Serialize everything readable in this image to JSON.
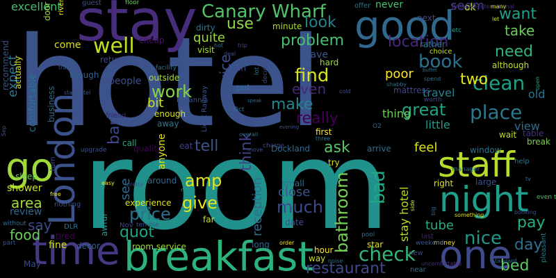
{
  "title": "",
  "background": "#000000",
  "words": [
    {
      "text": "hotel",
      "color": "#3b528b"
    },
    {
      "text": "room",
      "color": "#21918c"
    },
    {
      "text": "stay",
      "color": "#472d7b"
    },
    {
      "text": "good",
      "color": "#31688e"
    },
    {
      "text": "breakfast",
      "color": "#2db27d"
    },
    {
      "text": "London",
      "color": "#3b528b"
    },
    {
      "text": "night",
      "color": "#1f9e89"
    },
    {
      "text": "staff",
      "color": "#b5de2b"
    },
    {
      "text": "time",
      "color": "#443983"
    },
    {
      "text": "one",
      "color": "#3e4a89"
    },
    {
      "text": "go",
      "color": "#a0da39"
    },
    {
      "text": "Canary Wharf",
      "color": "#52c569"
    },
    {
      "text": "check",
      "color": "#35b779"
    },
    {
      "text": "well",
      "color": "#c2df23"
    },
    {
      "text": "book",
      "color": "#2c728e"
    },
    {
      "text": "clean",
      "color": "#1fa088"
    },
    {
      "text": "place",
      "color": "#2a788e"
    },
    {
      "text": "find",
      "color": "#d8e219"
    },
    {
      "text": "great",
      "color": "#20a486"
    },
    {
      "text": "work",
      "color": "#86d549"
    },
    {
      "text": "bad",
      "color": "#22a884"
    },
    {
      "text": "amp",
      "color": "#e5e419"
    },
    {
      "text": "give",
      "color": "#e5e419"
    },
    {
      "text": "much",
      "color": "#3e4a89"
    },
    {
      "text": "nice",
      "color": "#1f978b"
    },
    {
      "text": "price",
      "color": "#2d708e"
    },
    {
      "text": "bathroom",
      "color": "#75d054"
    },
    {
      "text": "restaurant",
      "color": "#3e4989"
    },
    {
      "text": "take",
      "color": "#6ccd5a"
    },
    {
      "text": "want",
      "color": "#1fa187"
    },
    {
      "text": "need",
      "color": "#31b57b"
    },
    {
      "text": "look",
      "color": "#26828e"
    },
    {
      "text": "use",
      "color": "#90d743"
    },
    {
      "text": "problem",
      "color": "#4ac16d"
    },
    {
      "text": "location",
      "color": "#482878"
    },
    {
      "text": "really",
      "color": "#440154"
    },
    {
      "text": "make",
      "color": "#25858e"
    },
    {
      "text": "think",
      "color": "#3f4788"
    },
    {
      "text": "tell",
      "color": "#3a548c"
    },
    {
      "text": "ask",
      "color": "#56c667"
    },
    {
      "text": "pay",
      "color": "#28ae80"
    },
    {
      "text": "day",
      "color": "#2d708e"
    },
    {
      "text": "bed",
      "color": "#5ec962"
    },
    {
      "text": "service",
      "color": "#3b528b"
    },
    {
      "text": "reception",
      "color": "#2f6c8e"
    },
    {
      "text": "say",
      "color": "#3e4a89"
    },
    {
      "text": "area",
      "color": "#a2da37"
    },
    {
      "text": "food",
      "color": "#6ccd5a"
    },
    {
      "text": "quot",
      "color": "#20a386"
    },
    {
      "text": "bar",
      "color": "#3f4788"
    },
    {
      "text": "two",
      "color": "#e7e419"
    },
    {
      "text": "even",
      "color": "#482878"
    },
    {
      "text": "quite",
      "color": "#9bd93c"
    },
    {
      "text": "stay hotel",
      "color": "#b8de29"
    },
    {
      "text": "tube",
      "color": "#26ad81"
    },
    {
      "text": "poor",
      "color": "#fde725"
    },
    {
      "text": "close",
      "color": "#3a548c"
    },
    {
      "text": "expect",
      "color": "#2c738e"
    },
    {
      "text": "seem",
      "color": "#433d84"
    },
    {
      "text": "see",
      "color": "#2e6e8e"
    },
    {
      "text": "feel",
      "color": "#dde318"
    },
    {
      "text": "excellent",
      "color": "#44bf70"
    },
    {
      "text": "bit",
      "color": "#c8e020"
    },
    {
      "text": "room service",
      "color": "#a5db36"
    },
    {
      "text": "shower",
      "color": "#d2e21b"
    },
    {
      "text": "view",
      "color": "#2e6d8e"
    },
    {
      "text": "thing",
      "color": "#6ece58"
    },
    {
      "text": "travel",
      "color": "#26828e"
    },
    {
      "text": "little",
      "color": "#1f9a8a"
    },
    {
      "text": "old",
      "color": "#2a778e"
    },
    {
      "text": "fine",
      "color": "#d0e11c"
    },
    {
      "text": "review",
      "color": "#31668e"
    },
    {
      "text": "never",
      "color": "#48c16e"
    },
    {
      "text": "ok",
      "color": "#b0dd2f"
    },
    {
      "text": "people",
      "color": "#3d4e8a"
    },
    {
      "text": "come",
      "color": "#dfe318"
    },
    {
      "text": "leave",
      "color": "#38598c"
    },
    {
      "text": "mattress",
      "color": "#3f4889"
    },
    {
      "text": "first",
      "color": "#fde725"
    },
    {
      "text": "sleep",
      "color": "#6ccd5a"
    },
    {
      "text": "Dockland",
      "color": "#31688e"
    },
    {
      "text": "arrive",
      "color": "#2f6c8e"
    },
    {
      "text": "window",
      "color": "#2c738e"
    },
    {
      "text": "wait",
      "color": "#c2df23"
    },
    {
      "text": "right",
      "color": "#dfe318"
    },
    {
      "text": "large",
      "color": "#3b528b"
    },
    {
      "text": "table",
      "color": "#46337f"
    },
    {
      "text": "break",
      "color": "#7ad151"
    },
    {
      "text": "star",
      "color": "#e2e418"
    },
    {
      "text": "decor",
      "color": "#34618d"
    },
    {
      "text": "hour",
      "color": "#fde725"
    },
    {
      "text": "way",
      "color": "#cae11f"
    },
    {
      "text": "long",
      "color": "#31668e"
    },
    {
      "text": "date",
      "color": "#3b528b"
    },
    {
      "text": "try",
      "color": "#d8e219"
    },
    {
      "text": "small",
      "color": "#2d708e"
    },
    {
      "text": "experience",
      "color": "#dde318"
    },
    {
      "text": "around",
      "color": "#31688e"
    },
    {
      "text": "far",
      "color": "#cae11f"
    },
    {
      "text": "tired",
      "color": "#440154"
    },
    {
      "text": "Nov",
      "color": "#3f4788"
    },
    {
      "text": "awful",
      "color": "#1f9e89"
    },
    {
      "text": "though",
      "color": "#34618d"
    },
    {
      "text": "although",
      "color": "#c5e021"
    },
    {
      "text": "business",
      "color": "#31688e"
    },
    {
      "text": "comfortable",
      "color": "#2c728e"
    },
    {
      "text": "recommend",
      "color": "#3b528b"
    },
    {
      "text": "actually",
      "color": "#d5e21a"
    },
    {
      "text": "friend",
      "color": "#481f70"
    },
    {
      "text": "away",
      "color": "#29798e"
    },
    {
      "text": "enough",
      "color": "#dae319"
    },
    {
      "text": "outside",
      "color": "#addc30"
    },
    {
      "text": "return",
      "color": "#3e4a89"
    },
    {
      "text": "quality",
      "color": "#440154"
    },
    {
      "text": "call",
      "color": "#25ab82"
    },
    {
      "text": "eat",
      "color": "#424086"
    },
    {
      "text": "visit",
      "color": "#a5db36"
    },
    {
      "text": "cheap",
      "color": "#471365"
    },
    {
      "text": "dirty",
      "color": "#287c8e"
    },
    {
      "text": "door",
      "color": "#a0da39"
    },
    {
      "text": "minute",
      "color": "#addc30"
    },
    {
      "text": "hard",
      "color": "#9bd93c"
    },
    {
      "text": "rather",
      "color": "#2a788e"
    },
    {
      "text": "choice",
      "color": "#c8e020"
    },
    {
      "text": "next",
      "color": "#3e4a89"
    },
    {
      "text": "offer",
      "color": "#2a788e"
    },
    {
      "text": "river",
      "color": "#f1e51d"
    },
    {
      "text": "guest",
      "color": "#3b528b"
    },
    {
      "text": "floor",
      "color": "#6ccd5a"
    },
    {
      "text": "Britannia International",
      "color": "#472c7a"
    },
    {
      "text": "many",
      "color": "#c8e020"
    },
    {
      "text": "let",
      "color": "#c8e020"
    },
    {
      "text": "etc",
      "color": "#1f9a8a"
    },
    {
      "text": "help",
      "color": "#2c738e"
    },
    {
      "text": "open",
      "color": "#1fa088"
    },
    {
      "text": "even though",
      "color": "#4ac16d"
    },
    {
      "text": "tv",
      "color": "#2c728e"
    },
    {
      "text": "pleasant",
      "color": "#2a788e"
    },
    {
      "text": "standard",
      "color": "#31688e"
    },
    {
      "text": "money",
      "color": "#fde725"
    },
    {
      "text": "weekend",
      "color": "#39568c"
    },
    {
      "text": "new",
      "color": "#3e4a89"
    },
    {
      "text": "pool",
      "color": "#2e6d8e"
    },
    {
      "text": "noise",
      "color": "#2d708e"
    },
    {
      "text": "order",
      "color": "#fde725"
    },
    {
      "text": "near",
      "color": "#2c738e"
    },
    {
      "text": "uncomfortable",
      "color": "#472d7b"
    },
    {
      "text": "last",
      "color": "#482173"
    },
    {
      "text": "big",
      "color": "#31688e"
    },
    {
      "text": "something",
      "color": "#dfe318"
    },
    {
      "text": "booking",
      "color": "#3b528b"
    },
    {
      "text": "manager",
      "color": "#2c738e"
    },
    {
      "text": "side",
      "color": "#d2e21b"
    },
    {
      "text": "without",
      "color": "#2d708e"
    },
    {
      "text": "part",
      "color": "#3b528b"
    },
    {
      "text": "nothing",
      "color": "#3b528b"
    },
    {
      "text": "DLR",
      "color": "#2a788e"
    },
    {
      "text": "turn",
      "color": "#3e4a89"
    },
    {
      "text": "upgrade",
      "color": "#3b528b"
    },
    {
      "text": "noisy",
      "color": "#1f9a8a"
    },
    {
      "text": "must",
      "color": "#2d708e"
    },
    {
      "text": "terrible",
      "color": "#3b528b"
    },
    {
      "text": "pretty",
      "color": "#3e4a89"
    },
    {
      "text": "easy",
      "color": "#fde725"
    },
    {
      "text": "free",
      "color": "#fde725"
    },
    {
      "text": "move",
      "color": "#3b528b"
    },
    {
      "text": "charge",
      "color": "#3e4a89"
    },
    {
      "text": "O2",
      "color": "#31688e"
    },
    {
      "text": "three",
      "color": "#2c738e"
    },
    {
      "text": "overall",
      "color": "#2d708e"
    },
    {
      "text": "evening",
      "color": "#3b528b"
    },
    {
      "text": "Light Railway",
      "color": "#3b528b"
    },
    {
      "text": "Britannia",
      "color": "#3b528b"
    },
    {
      "text": "Oct",
      "color": "#2c738e"
    },
    {
      "text": "speak",
      "color": "#31688e"
    },
    {
      "text": "decide",
      "color": "#3e4a89"
    },
    {
      "text": "shabby",
      "color": "#2d708e"
    },
    {
      "text": "worth",
      "color": "#3e4a89"
    },
    {
      "text": "cold",
      "color": "#3b528b"
    },
    {
      "text": "facility",
      "color": "#2c738e"
    },
    {
      "text": "buffet",
      "color": "#2c738e"
    },
    {
      "text": "spend",
      "color": "#2d708e"
    },
    {
      "text": "run",
      "color": "#3e4a89"
    },
    {
      "text": "put",
      "color": "#2c738e"
    },
    {
      "text": "lot",
      "color": "#2d708e"
    },
    {
      "text": "hot",
      "color": "#2c738e"
    },
    {
      "text": "trip",
      "color": "#3e4a89"
    },
    {
      "text": "deal",
      "color": "#3e4a89"
    },
    {
      "text": "train",
      "color": "#3b528b"
    },
    {
      "text": "Sep",
      "color": "#3b528b"
    },
    {
      "text": "star hotel",
      "color": "#3b528b"
    },
    {
      "text": "anyone",
      "color": "#dfe318"
    },
    {
      "text": "May",
      "color": "#3e4a89"
    },
    {
      "text": "Aug",
      "color": "#3b528b"
    }
  ]
}
